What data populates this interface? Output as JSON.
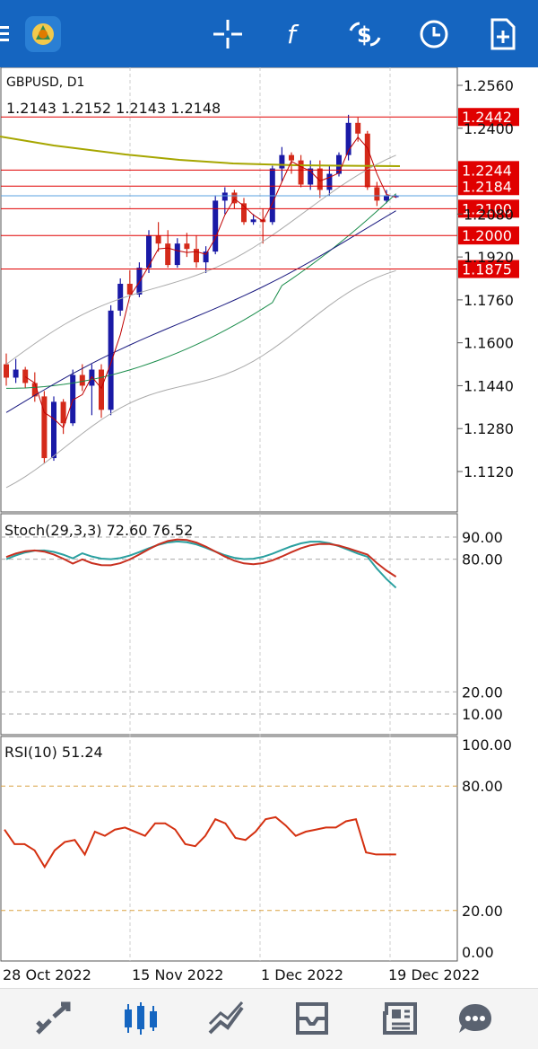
{
  "app": {
    "symbol_label": "GBPUSD, D1",
    "ohlc_label": "1.2143 1.2152 1.2143 1.2148",
    "current_price": "1.2148"
  },
  "toolbar": {
    "icons": [
      "menu-icon",
      "app-logo-icon",
      "crosshair-icon",
      "indicators-icon",
      "trade-icon",
      "clock-icon",
      "new-document-icon"
    ]
  },
  "price_axis": {
    "ticks": [
      "1.2560",
      "1.2400",
      "1.2080",
      "1.1920",
      "1.1760",
      "1.1600",
      "1.1440",
      "1.1280",
      "1.1120"
    ]
  },
  "levels": [
    {
      "label": "1.2442",
      "color": "#e00000"
    },
    {
      "label": "1.2244",
      "color": "#e00000"
    },
    {
      "label": "1.2184",
      "color": "#e00000"
    },
    {
      "label": "1.2100",
      "color": "#e00000"
    },
    {
      "label": "1.2000",
      "color": "#e00000"
    },
    {
      "label": "1.1875",
      "color": "#e00000"
    }
  ],
  "stoch": {
    "label": "Stoch(29,3,3) 72.60 76.52",
    "ticks": [
      "90.00",
      "80.00",
      "20.00",
      "10.00"
    ]
  },
  "rsi": {
    "label": "RSI(10) 51.24",
    "ticks": [
      "100.00",
      "80.00",
      "20.00",
      "0.00"
    ]
  },
  "time_axis": {
    "ticks": [
      "28 Oct 2022",
      "15 Nov 2022",
      "1 Dec 2022",
      "19 Dec 2022"
    ]
  },
  "bottom_nav": [
    "quotes-icon",
    "chart-icon",
    "trade-icon",
    "history-icon",
    "news-icon",
    "chat-icon"
  ],
  "colors": {
    "header": "#1565c0",
    "bull": "#1a1aa6",
    "bear": "#d42a1a",
    "level": "#e00000",
    "accent_active": "#1565c0"
  },
  "chart_data": {
    "type": "candlestick",
    "x": [
      "28 Oct 2022",
      "15 Nov 2022",
      "1 Dec 2022",
      "19 Dec 2022"
    ],
    "series": [
      {
        "name": "GBPUSD",
        "values": [
          1.1475,
          1.171,
          1.213,
          1.2148
        ]
      }
    ],
    "ylim": [
      1.104,
      1.26
    ],
    "stoch": {
      "k": 72.6,
      "d": 76.52
    },
    "rsi": 51.24
  }
}
